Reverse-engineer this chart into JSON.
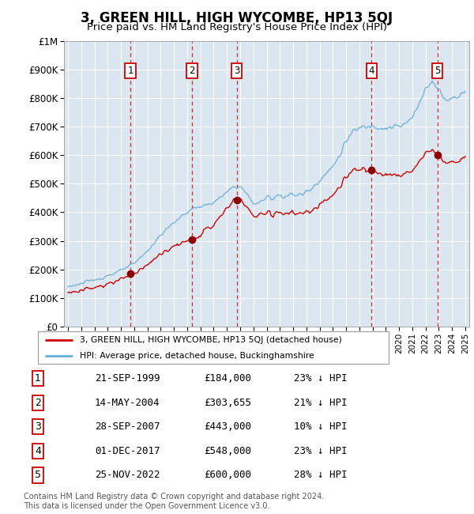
{
  "title": "3, GREEN HILL, HIGH WYCOMBE, HP13 5QJ",
  "subtitle": "Price paid vs. HM Land Registry's House Price Index (HPI)",
  "yticks": [
    0,
    100000,
    200000,
    300000,
    400000,
    500000,
    600000,
    700000,
    800000,
    900000,
    1000000
  ],
  "ytick_labels": [
    "£0",
    "£100K",
    "£200K",
    "£300K",
    "£400K",
    "£500K",
    "£600K",
    "£700K",
    "£800K",
    "£900K",
    "£1M"
  ],
  "xmin": 1994.7,
  "xmax": 2025.3,
  "ymin": 0,
  "ymax": 1000000,
  "sales": [
    {
      "num": 1,
      "date": "21-SEP-1999",
      "year": 1999.72,
      "price": 184000,
      "pct": "23% ↓ HPI"
    },
    {
      "num": 2,
      "date": "14-MAY-2004",
      "year": 2004.37,
      "price": 303655,
      "pct": "21% ↓ HPI"
    },
    {
      "num": 3,
      "date": "28-SEP-2007",
      "year": 2007.74,
      "price": 443000,
      "pct": "10% ↓ HPI"
    },
    {
      "num": 4,
      "date": "01-DEC-2017",
      "year": 2017.92,
      "price": 548000,
      "pct": "23% ↓ HPI"
    },
    {
      "num": 5,
      "date": "25-NOV-2022",
      "year": 2022.9,
      "price": 600000,
      "pct": "28% ↓ HPI"
    }
  ],
  "legend_property_label": "3, GREEN HILL, HIGH WYCOMBE, HP13 5QJ (detached house)",
  "legend_hpi_label": "HPI: Average price, detached house, Buckinghamshire",
  "property_line_color": "#cc0000",
  "hpi_line_color": "#6baed6",
  "sale_marker_color": "#8b0000",
  "vline_color": "#cc0000",
  "box_color": "#cc0000",
  "footnote": "Contains HM Land Registry data © Crown copyright and database right 2024.\nThis data is licensed under the Open Government Licence v3.0.",
  "plot_bg_color": "#dce6f1"
}
